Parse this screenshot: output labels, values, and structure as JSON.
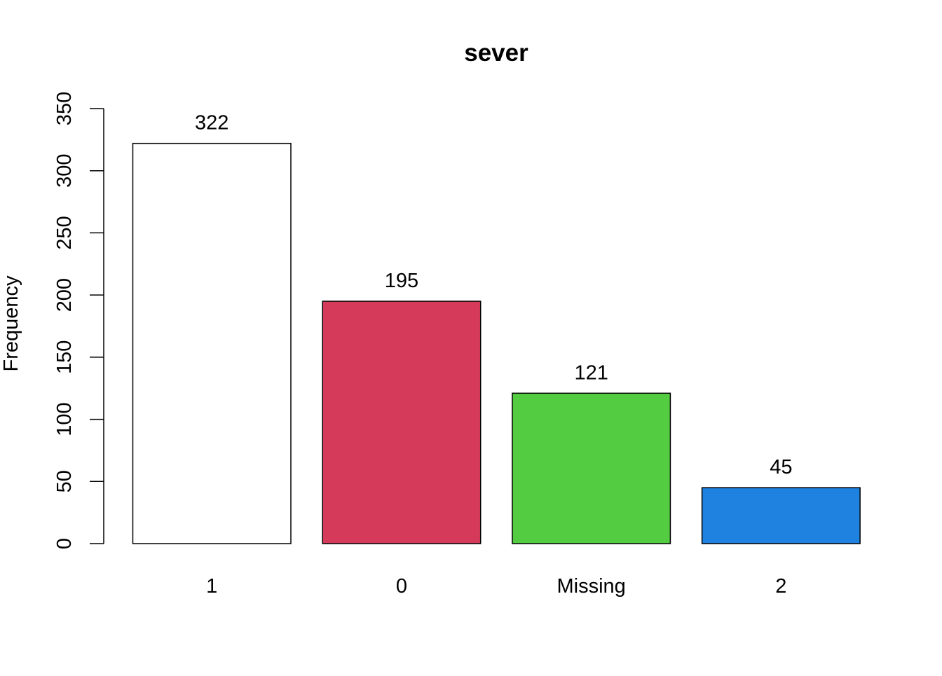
{
  "chart_data": {
    "type": "bar",
    "title": "sever",
    "xlabel": "",
    "ylabel": "Frequency",
    "categories": [
      "1",
      "0",
      "Missing",
      "2"
    ],
    "values": [
      322,
      195,
      121,
      45
    ],
    "value_labels": [
      "322",
      "195",
      "121",
      "45"
    ],
    "colors": [
      "#FFFFFF",
      "#D53A5A",
      "#54CC41",
      "#1F81E0"
    ],
    "ylim": [
      0,
      350
    ],
    "yticks": [
      0,
      50,
      100,
      150,
      200,
      250,
      300,
      350
    ],
    "ytick_labels": [
      "0",
      "50",
      "100",
      "150",
      "200",
      "250",
      "300",
      "350"
    ],
    "grid": false,
    "legend": "none"
  }
}
